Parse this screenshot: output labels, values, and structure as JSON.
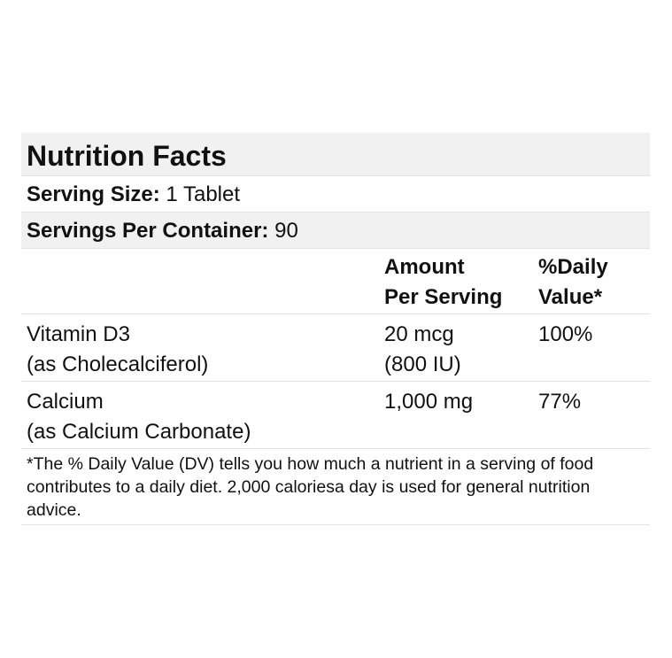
{
  "label": {
    "title": "Nutrition Facts",
    "serving_size": {
      "label": "Serving Size:",
      "value": "1 Tablet"
    },
    "servings_per_container": {
      "label": "Servings Per Container:",
      "value": "90"
    },
    "columns": {
      "amount_line1": "Amount",
      "amount_line2": "Per Serving",
      "dv_line1": "%Daily",
      "dv_line2": "Value*"
    },
    "nutrients": [
      {
        "name": "Vitamin D3",
        "source": "(as Cholecalciferol)",
        "amount": "20 mcg",
        "amount_alt": "(800 IU)",
        "dv": "100%"
      },
      {
        "name": "Calcium",
        "source": "(as Calcium Carbonate)",
        "amount": "1,000 mg",
        "amount_alt": "",
        "dv": "77%"
      }
    ],
    "footnote": "*The % Daily Value (DV) tells you how much a nutrient in a serving of food contributes to a daily diet. 2,000 caloriesa day is used for general nutrition advice."
  }
}
